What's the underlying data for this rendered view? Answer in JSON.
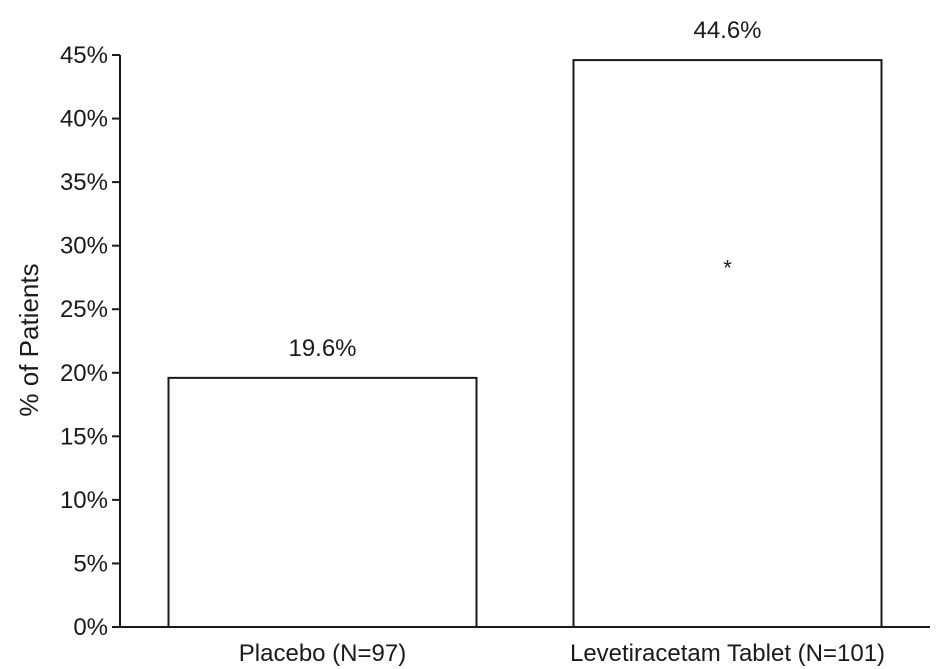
{
  "chart_data": {
    "type": "bar",
    "title": "",
    "xlabel": "",
    "ylabel": "% of Patients",
    "ylim": [
      0,
      45
    ],
    "y_ticks": [
      0,
      5,
      10,
      15,
      20,
      25,
      30,
      35,
      40,
      45
    ],
    "y_tick_labels": [
      "0%",
      "5%",
      "10%",
      "15%",
      "20%",
      "25%",
      "30%",
      "35%",
      "40%",
      "45%"
    ],
    "categories": [
      "Placebo (N=97)",
      "Levetiracetam Tablet (N=101)"
    ],
    "values": [
      19.6,
      44.6
    ],
    "data_labels": [
      "19.6%",
      "44.6%"
    ],
    "annotations": [
      {
        "category_index": 1,
        "text": "*"
      }
    ],
    "grid": false,
    "legend": "none",
    "colors": {
      "bar_fill": "#ffffff",
      "bar_stroke": "#1a1a1a",
      "axis": "#1a1a1a"
    }
  }
}
